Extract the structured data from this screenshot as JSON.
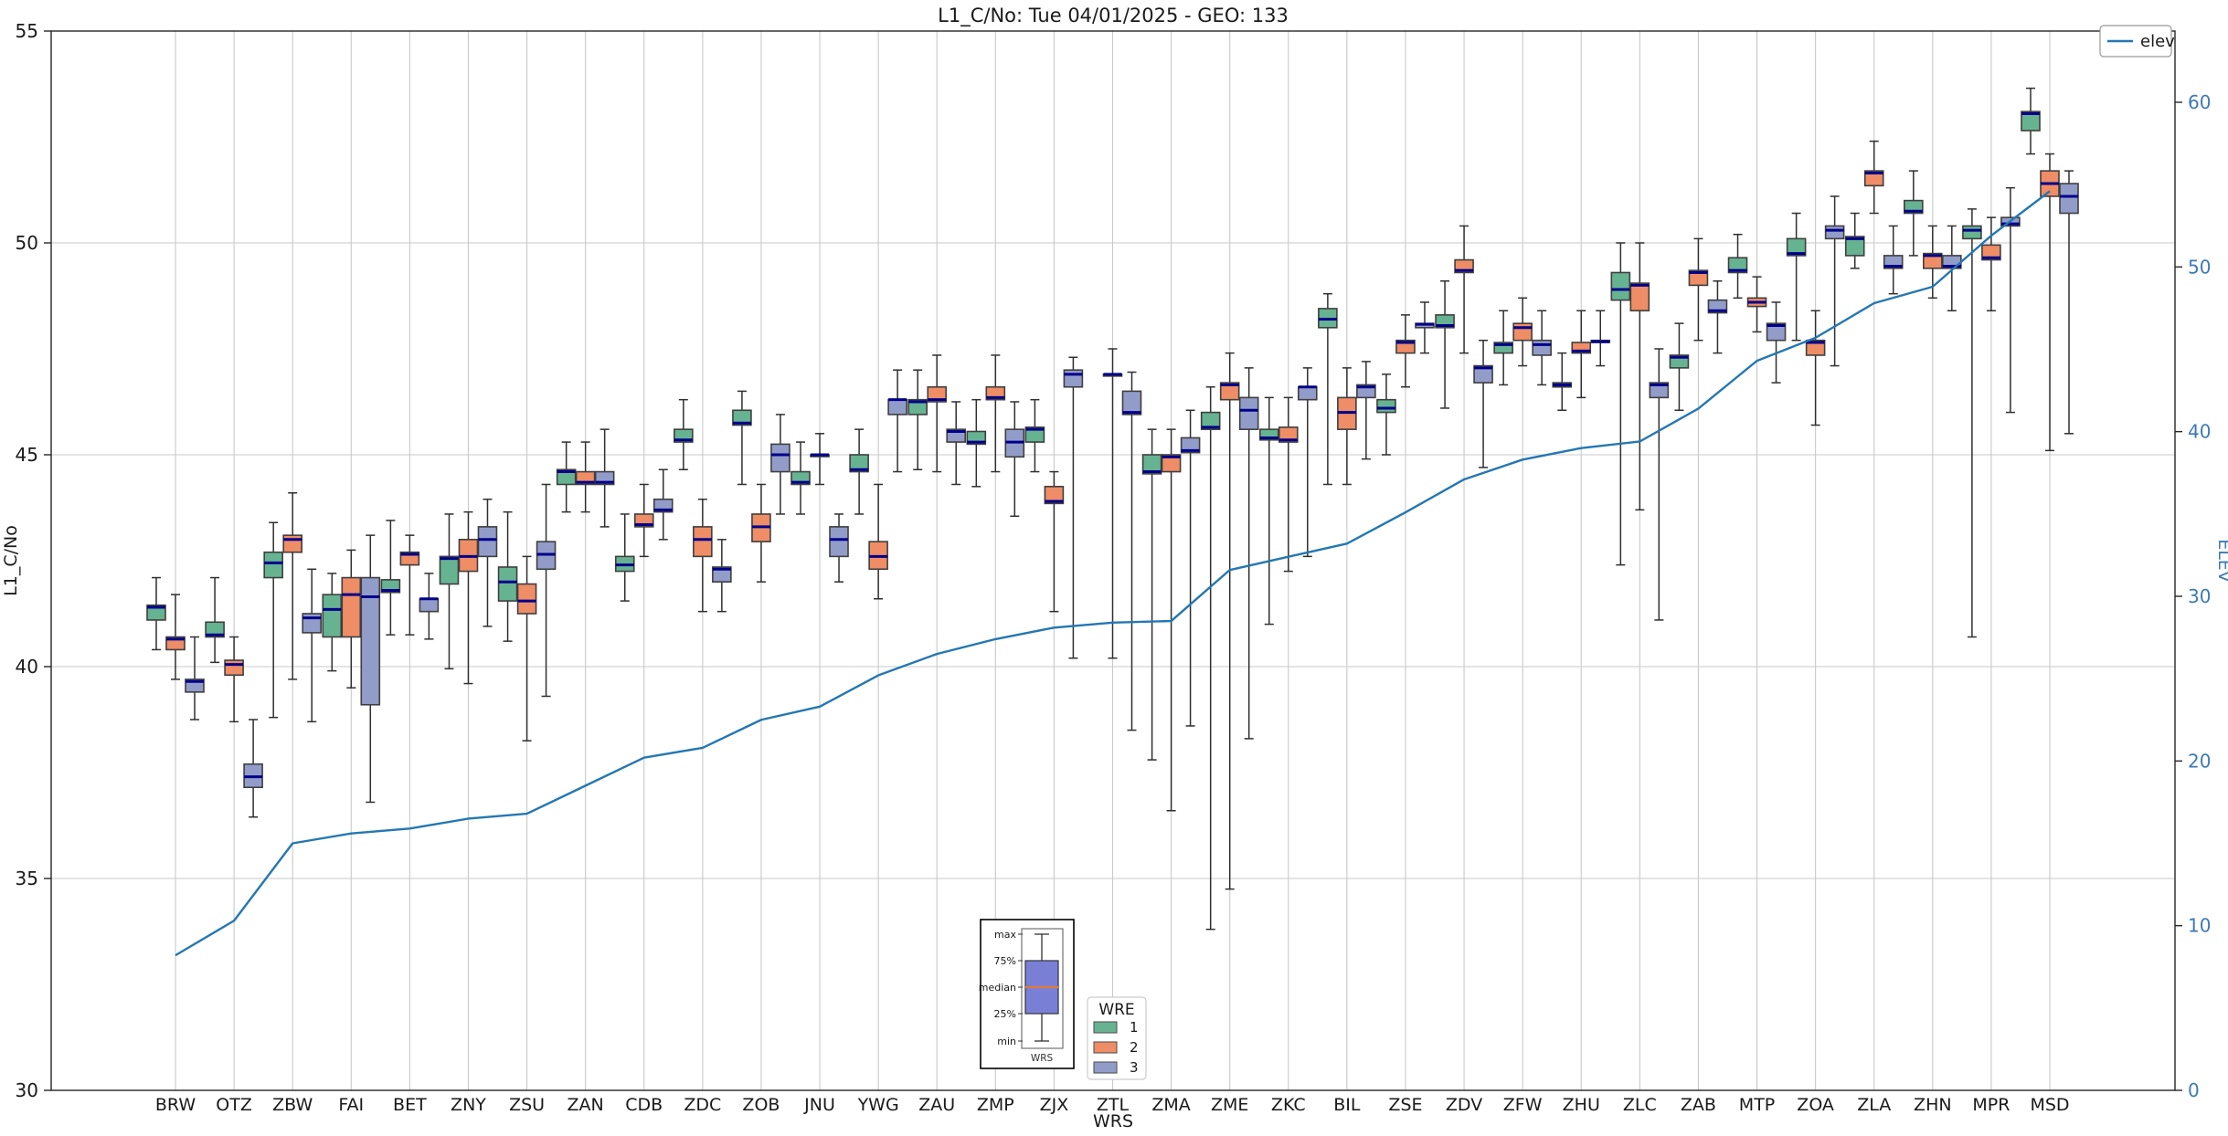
{
  "chart_data": {
    "type": "boxplot+line",
    "title": "L1_C/No: Tue 04/01/2025 - GEO: 133",
    "xlabel": "WRS",
    "ylabel_left": "L1_C/No",
    "ylabel_right": "ELEV",
    "ylim_left": [
      30,
      55
    ],
    "ylim_right": [
      0,
      60
    ],
    "left_ticks": [
      55,
      50,
      45,
      40,
      35,
      30
    ],
    "right_ticks": [
      60,
      50,
      40,
      30,
      20,
      10,
      0
    ],
    "grid_values": [
      50,
      45,
      40,
      35
    ],
    "categories": [
      "BRW",
      "OTZ",
      "ZBW",
      "FAI",
      "BET",
      "ZNY",
      "ZSU",
      "ZAN",
      "CDB",
      "ZDC",
      "ZOB",
      "JNU",
      "YWG",
      "ZAU",
      "ZMP",
      "ZJX",
      "ZTL",
      "ZMA",
      "ZME",
      "ZKC",
      "BIL",
      "ZSE",
      "ZDV",
      "ZFW",
      "ZHU",
      "ZLC",
      "ZAB",
      "MTP",
      "ZOA",
      "ZLA",
      "ZHN",
      "MPR",
      "MSD"
    ],
    "series": [
      {
        "name": "1",
        "color": "#66b392",
        "boxes": [
          [
            40.4,
            41.1,
            41.4,
            41.45,
            42.1
          ],
          [
            40.1,
            40.7,
            40.75,
            41.05,
            42.1
          ],
          [
            38.8,
            42.1,
            42.45,
            42.7,
            43.4
          ],
          [
            39.9,
            40.7,
            41.35,
            41.7,
            42.2
          ],
          [
            40.75,
            41.75,
            41.8,
            42.05,
            43.45
          ],
          [
            39.95,
            41.95,
            42.55,
            42.6,
            43.6
          ],
          [
            40.6,
            41.55,
            42.0,
            42.35,
            43.65
          ],
          [
            43.65,
            44.3,
            44.6,
            44.65,
            45.3
          ],
          [
            41.55,
            42.25,
            42.4,
            42.6,
            43.6
          ],
          [
            44.65,
            45.3,
            45.35,
            45.6,
            46.3
          ],
          [
            44.3,
            45.7,
            45.75,
            46.05,
            46.5
          ],
          [
            43.6,
            44.3,
            44.35,
            44.6,
            45.3
          ],
          [
            43.6,
            44.6,
            44.65,
            45.0,
            45.6
          ],
          [
            44.65,
            45.95,
            46.25,
            46.3,
            47.0
          ],
          [
            44.25,
            45.25,
            45.3,
            45.55,
            46.3
          ],
          [
            44.6,
            45.3,
            45.6,
            45.65,
            46.3
          ],
          null,
          [
            37.8,
            44.55,
            44.6,
            45.0,
            45.6
          ],
          [
            33.8,
            45.6,
            45.65,
            46.0,
            46.6
          ],
          [
            41.0,
            45.35,
            45.4,
            45.6,
            46.35
          ],
          [
            44.3,
            48.0,
            48.2,
            48.45,
            48.8
          ],
          [
            45.0,
            46.0,
            46.1,
            46.3,
            46.9
          ],
          [
            46.1,
            48.0,
            48.05,
            48.3,
            49.1
          ],
          [
            46.65,
            47.4,
            47.6,
            47.65,
            48.4
          ],
          [
            46.05,
            46.6,
            46.65,
            46.7,
            47.4
          ],
          [
            42.4,
            48.65,
            48.9,
            49.3,
            50.0
          ],
          [
            46.05,
            47.05,
            47.3,
            47.35,
            48.1
          ],
          [
            48.7,
            49.3,
            49.35,
            49.65,
            50.2
          ],
          [
            47.7,
            49.7,
            49.75,
            50.1,
            50.7
          ],
          [
            49.4,
            49.7,
            50.1,
            50.15,
            50.7
          ],
          [
            49.7,
            50.7,
            50.75,
            51.0,
            51.7
          ],
          [
            40.7,
            50.1,
            50.3,
            50.4,
            50.8
          ],
          [
            52.1,
            52.65,
            53.05,
            53.1,
            53.65
          ]
        ]
      },
      {
        "name": "2",
        "color": "#ee8d66",
        "boxes": [
          [
            39.7,
            40.4,
            40.65,
            40.7,
            41.7
          ],
          [
            38.7,
            39.8,
            40.05,
            40.15,
            40.7
          ],
          [
            39.7,
            42.7,
            43.0,
            43.1,
            44.1
          ],
          [
            39.5,
            40.7,
            41.7,
            42.1,
            42.75
          ],
          [
            40.75,
            42.4,
            42.65,
            42.7,
            43.1
          ],
          [
            39.6,
            42.25,
            42.6,
            43.0,
            43.65
          ],
          [
            38.25,
            41.25,
            41.55,
            41.95,
            42.6
          ],
          [
            43.65,
            44.3,
            44.35,
            44.6,
            45.3
          ],
          [
            42.6,
            43.3,
            43.35,
            43.6,
            44.3
          ],
          [
            41.3,
            42.6,
            43.0,
            43.3,
            43.95
          ],
          [
            42.0,
            42.95,
            43.3,
            43.6,
            44.3
          ],
          [
            44.3,
            45.0,
            45.0,
            45.0,
            45.5
          ],
          [
            41.6,
            42.3,
            42.6,
            42.95,
            44.3
          ],
          [
            44.6,
            46.25,
            46.3,
            46.6,
            47.35
          ],
          [
            44.6,
            46.3,
            46.35,
            46.6,
            47.35
          ],
          [
            41.3,
            43.85,
            43.9,
            44.25,
            44.6
          ],
          [
            40.2,
            46.9,
            46.9,
            46.9,
            47.5
          ],
          [
            36.6,
            44.6,
            44.95,
            45.0,
            45.6
          ],
          [
            34.75,
            46.3,
            46.65,
            46.7,
            47.4
          ],
          [
            42.25,
            45.3,
            45.35,
            45.65,
            46.35
          ],
          [
            44.3,
            45.6,
            46.0,
            46.35,
            47.05
          ],
          [
            46.6,
            47.4,
            47.65,
            47.7,
            48.3
          ],
          [
            47.4,
            49.3,
            49.35,
            49.6,
            50.4
          ],
          [
            47.1,
            47.7,
            48.0,
            48.1,
            48.7
          ],
          [
            46.35,
            47.4,
            47.45,
            47.65,
            48.4
          ],
          [
            43.7,
            48.4,
            49.0,
            49.05,
            50.0
          ],
          [
            47.7,
            49.0,
            49.3,
            49.35,
            50.1
          ],
          [
            47.9,
            48.5,
            48.6,
            48.7,
            49.2
          ],
          [
            45.7,
            47.35,
            47.65,
            47.7,
            48.4
          ],
          [
            50.7,
            51.35,
            51.65,
            51.7,
            52.4
          ],
          [
            48.7,
            49.4,
            49.7,
            49.75,
            50.4
          ],
          [
            48.4,
            49.6,
            49.65,
            49.95,
            50.6
          ],
          [
            45.1,
            51.1,
            51.4,
            51.7,
            52.1
          ]
        ]
      },
      {
        "name": "3",
        "color": "#929cc9",
        "boxes": [
          [
            38.75,
            39.4,
            39.65,
            39.7,
            40.7
          ],
          [
            36.45,
            37.15,
            37.4,
            37.7,
            38.75
          ],
          [
            38.7,
            40.8,
            41.15,
            41.25,
            42.3
          ],
          [
            36.8,
            39.1,
            41.65,
            42.1,
            43.1
          ],
          [
            40.65,
            41.3,
            41.6,
            41.6,
            42.2
          ],
          [
            40.95,
            42.6,
            43.0,
            43.3,
            43.95
          ],
          [
            39.3,
            42.3,
            42.65,
            42.95,
            44.3
          ],
          [
            43.3,
            44.3,
            44.35,
            44.6,
            45.6
          ],
          [
            43.0,
            43.65,
            43.7,
            43.95,
            44.65
          ],
          [
            41.3,
            42.0,
            42.3,
            42.35,
            43.0
          ],
          [
            43.6,
            44.6,
            45.0,
            45.25,
            45.95
          ],
          [
            42.0,
            42.6,
            43.0,
            43.3,
            43.6
          ],
          [
            44.6,
            45.95,
            46.3,
            46.3,
            47.0
          ],
          [
            44.3,
            45.3,
            45.55,
            45.6,
            46.25
          ],
          [
            43.55,
            44.95,
            45.3,
            45.6,
            46.25
          ],
          [
            40.2,
            46.6,
            46.9,
            47.0,
            47.3
          ],
          [
            38.5,
            45.95,
            46.0,
            46.5,
            46.95
          ],
          [
            38.6,
            45.05,
            45.1,
            45.4,
            46.05
          ],
          [
            38.3,
            45.6,
            46.05,
            46.35,
            47.05
          ],
          [
            42.6,
            46.3,
            46.6,
            46.6,
            47.05
          ],
          [
            44.9,
            46.35,
            46.6,
            46.65,
            47.2
          ],
          [
            47.4,
            48.0,
            48.08,
            48.1,
            48.6
          ],
          [
            44.7,
            46.7,
            47.05,
            47.1,
            47.7
          ],
          [
            46.65,
            47.35,
            47.6,
            47.7,
            48.4
          ],
          [
            47.1,
            47.65,
            47.67,
            47.7,
            48.4
          ],
          [
            41.1,
            46.35,
            46.65,
            46.7,
            47.5
          ],
          [
            47.4,
            48.35,
            48.4,
            48.65,
            49.1
          ],
          [
            46.7,
            47.7,
            48.05,
            48.1,
            48.6
          ],
          [
            47.1,
            50.1,
            50.3,
            50.4,
            51.1
          ],
          [
            48.8,
            49.4,
            49.45,
            49.7,
            50.4
          ],
          [
            48.4,
            49.4,
            49.45,
            49.7,
            50.4
          ],
          [
            46.0,
            50.4,
            50.45,
            50.6,
            51.3
          ],
          [
            45.5,
            50.7,
            51.1,
            51.4,
            51.7
          ]
        ]
      }
    ],
    "elev_line": {
      "name": "elev",
      "color": "#2477b2",
      "values": [
        8.2,
        10.3,
        15.0,
        15.6,
        15.9,
        16.5,
        16.8,
        18.5,
        20.2,
        20.8,
        22.5,
        23.3,
        25.2,
        26.5,
        27.4,
        28.1,
        28.4,
        28.5,
        31.6,
        32.4,
        33.2,
        35.1,
        37.1,
        38.3,
        39.0,
        39.4,
        41.4,
        44.3,
        45.7,
        47.8,
        48.8,
        51.9,
        54.6
      ]
    },
    "legend_position": "upper right"
  },
  "legend_elev": {
    "label": "elev"
  },
  "legend_wre": {
    "title": "WRE",
    "entries": [
      {
        "label": "1",
        "color": "#66b392"
      },
      {
        "label": "2",
        "color": "#ee8d66"
      },
      {
        "label": "3",
        "color": "#929cc9"
      }
    ]
  },
  "legend_box": {
    "labels": [
      "max",
      "75%",
      "median",
      "25%",
      "min"
    ],
    "xlabel": "WRS",
    "box_color": "#7a7fd6",
    "median_color": "#e07b39"
  },
  "style_colors": {
    "median_line": "#00008b",
    "box_edge": "#3f3f3f",
    "whisker": "#2f2f2f",
    "grid": "#c9c9c9",
    "spine": "#262626",
    "right_axis_text": "#3d7ab5",
    "text": "#1a1a1a"
  }
}
